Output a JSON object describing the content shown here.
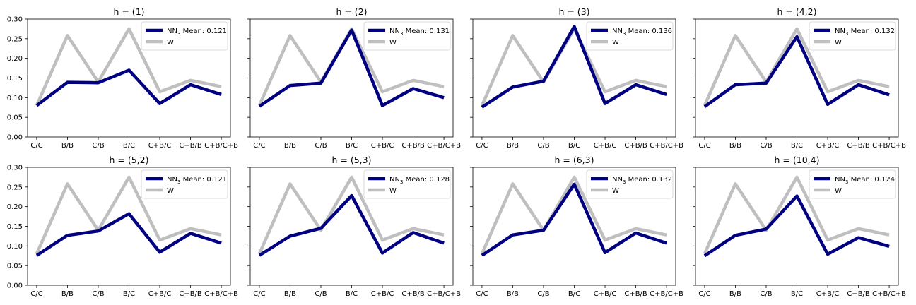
{
  "colors": {
    "nn": "#000080",
    "w": "#bfbfbf",
    "axis": "#000000",
    "background": "#ffffff"
  },
  "chart_data": [
    {
      "type": "line",
      "title": "h = (1)",
      "categories": [
        "C/C",
        "B/B",
        "C/B",
        "B/C",
        "C+B/C",
        "C+B/B",
        "C+B/C+B"
      ],
      "ylim": [
        0,
        0.3
      ],
      "yticks": [
        "0.00",
        "0.05",
        "0.10",
        "0.15",
        "0.20",
        "0.25",
        "0.30"
      ],
      "legend_position": "upper right",
      "series": [
        {
          "name": "NN",
          "name_sub": "3",
          "label_suffix": " Mean: 0.121",
          "values": [
            0.08,
            0.139,
            0.138,
            0.17,
            0.085,
            0.133,
            0.108
          ]
        },
        {
          "name": "W",
          "values": [
            0.08,
            0.258,
            0.14,
            0.275,
            0.115,
            0.144,
            0.128
          ]
        }
      ]
    },
    {
      "type": "line",
      "title": "h = (2)",
      "categories": [
        "C/C",
        "B/B",
        "C/B",
        "B/C",
        "C+B/C",
        "C+B/B",
        "C+B/C+B"
      ],
      "ylim": [
        0,
        0.3
      ],
      "yticks": [
        "0.00",
        "0.05",
        "0.10",
        "0.15",
        "0.20",
        "0.25",
        "0.30"
      ],
      "legend_position": "upper right",
      "series": [
        {
          "name": "NN",
          "name_sub": "3",
          "label_suffix": " Mean: 0.131",
          "values": [
            0.078,
            0.131,
            0.137,
            0.272,
            0.08,
            0.123,
            0.1
          ]
        },
        {
          "name": "W",
          "values": [
            0.08,
            0.258,
            0.14,
            0.275,
            0.115,
            0.144,
            0.128
          ]
        }
      ]
    },
    {
      "type": "line",
      "title": "h = (3)",
      "categories": [
        "C/C",
        "B/B",
        "C/B",
        "B/C",
        "C+B/C",
        "C+B/B",
        "C+B/C+B"
      ],
      "ylim": [
        0,
        0.3
      ],
      "yticks": [
        "0.00",
        "0.05",
        "0.10",
        "0.15",
        "0.20",
        "0.25",
        "0.30"
      ],
      "legend_position": "upper right",
      "series": [
        {
          "name": "NN",
          "name_sub": "3",
          "label_suffix": " Mean: 0.136",
          "values": [
            0.076,
            0.127,
            0.142,
            0.281,
            0.085,
            0.133,
            0.108
          ]
        },
        {
          "name": "W",
          "values": [
            0.08,
            0.258,
            0.14,
            0.275,
            0.115,
            0.144,
            0.128
          ]
        }
      ]
    },
    {
      "type": "line",
      "title": "h = (4,2)",
      "categories": [
        "C/C",
        "B/B",
        "C/B",
        "B/C",
        "C+B/C",
        "C+B/B",
        "C+B/C+B"
      ],
      "ylim": [
        0,
        0.3
      ],
      "yticks": [
        "0.00",
        "0.05",
        "0.10",
        "0.15",
        "0.20",
        "0.25",
        "0.30"
      ],
      "legend_position": "upper right",
      "series": [
        {
          "name": "NN",
          "name_sub": "3",
          "label_suffix": " Mean: 0.132",
          "values": [
            0.077,
            0.133,
            0.137,
            0.255,
            0.083,
            0.133,
            0.107
          ]
        },
        {
          "name": "W",
          "values": [
            0.08,
            0.258,
            0.14,
            0.275,
            0.115,
            0.144,
            0.128
          ]
        }
      ]
    },
    {
      "type": "line",
      "title": "h = (5,2)",
      "categories": [
        "C/C",
        "B/B",
        "C/B",
        "B/C",
        "C+B/C",
        "C+B/B",
        "C+B/C+B"
      ],
      "ylim": [
        0,
        0.3
      ],
      "yticks": [
        "0.00",
        "0.05",
        "0.10",
        "0.15",
        "0.20",
        "0.25",
        "0.30"
      ],
      "legend_position": "upper right",
      "series": [
        {
          "name": "NN",
          "name_sub": "3",
          "label_suffix": " Mean: 0.121",
          "values": [
            0.076,
            0.127,
            0.138,
            0.182,
            0.084,
            0.132,
            0.107
          ]
        },
        {
          "name": "W",
          "values": [
            0.08,
            0.258,
            0.14,
            0.275,
            0.115,
            0.144,
            0.128
          ]
        }
      ]
    },
    {
      "type": "line",
      "title": "h = (5,3)",
      "categories": [
        "C/C",
        "B/B",
        "C/B",
        "B/C",
        "C+B/C",
        "C+B/B",
        "C+B/C+B"
      ],
      "ylim": [
        0,
        0.3
      ],
      "yticks": [
        "0.00",
        "0.05",
        "0.10",
        "0.15",
        "0.20",
        "0.25",
        "0.30"
      ],
      "legend_position": "upper right",
      "series": [
        {
          "name": "NN",
          "name_sub": "3",
          "label_suffix": " Mean: 0.128",
          "values": [
            0.076,
            0.125,
            0.145,
            0.228,
            0.082,
            0.134,
            0.107
          ]
        },
        {
          "name": "W",
          "values": [
            0.08,
            0.258,
            0.14,
            0.275,
            0.115,
            0.144,
            0.128
          ]
        }
      ]
    },
    {
      "type": "line",
      "title": "h = (6,3)",
      "categories": [
        "C/C",
        "B/B",
        "C/B",
        "B/C",
        "C+B/C",
        "C+B/B",
        "C+B/C+B"
      ],
      "ylim": [
        0,
        0.3
      ],
      "yticks": [
        "0.00",
        "0.05",
        "0.10",
        "0.15",
        "0.20",
        "0.25",
        "0.30"
      ],
      "legend_position": "upper right",
      "series": [
        {
          "name": "NN",
          "name_sub": "3",
          "label_suffix": " Mean: 0.132",
          "values": [
            0.076,
            0.128,
            0.14,
            0.257,
            0.083,
            0.133,
            0.107
          ]
        },
        {
          "name": "W",
          "values": [
            0.08,
            0.258,
            0.14,
            0.275,
            0.115,
            0.144,
            0.128
          ]
        }
      ]
    },
    {
      "type": "line",
      "title": "h = (10,4)",
      "categories": [
        "C/C",
        "B/B",
        "C/B",
        "B/C",
        "C+B/C",
        "C+B/B",
        "C+B/C+B"
      ],
      "ylim": [
        0,
        0.3
      ],
      "yticks": [
        "0.00",
        "0.05",
        "0.10",
        "0.15",
        "0.20",
        "0.25",
        "0.30"
      ],
      "legend_position": "upper right",
      "series": [
        {
          "name": "NN",
          "name_sub": "3",
          "label_suffix": " Mean: 0.124",
          "values": [
            0.075,
            0.127,
            0.143,
            0.227,
            0.079,
            0.121,
            0.099
          ]
        },
        {
          "name": "W",
          "values": [
            0.08,
            0.258,
            0.14,
            0.275,
            0.115,
            0.144,
            0.128
          ]
        }
      ]
    }
  ]
}
